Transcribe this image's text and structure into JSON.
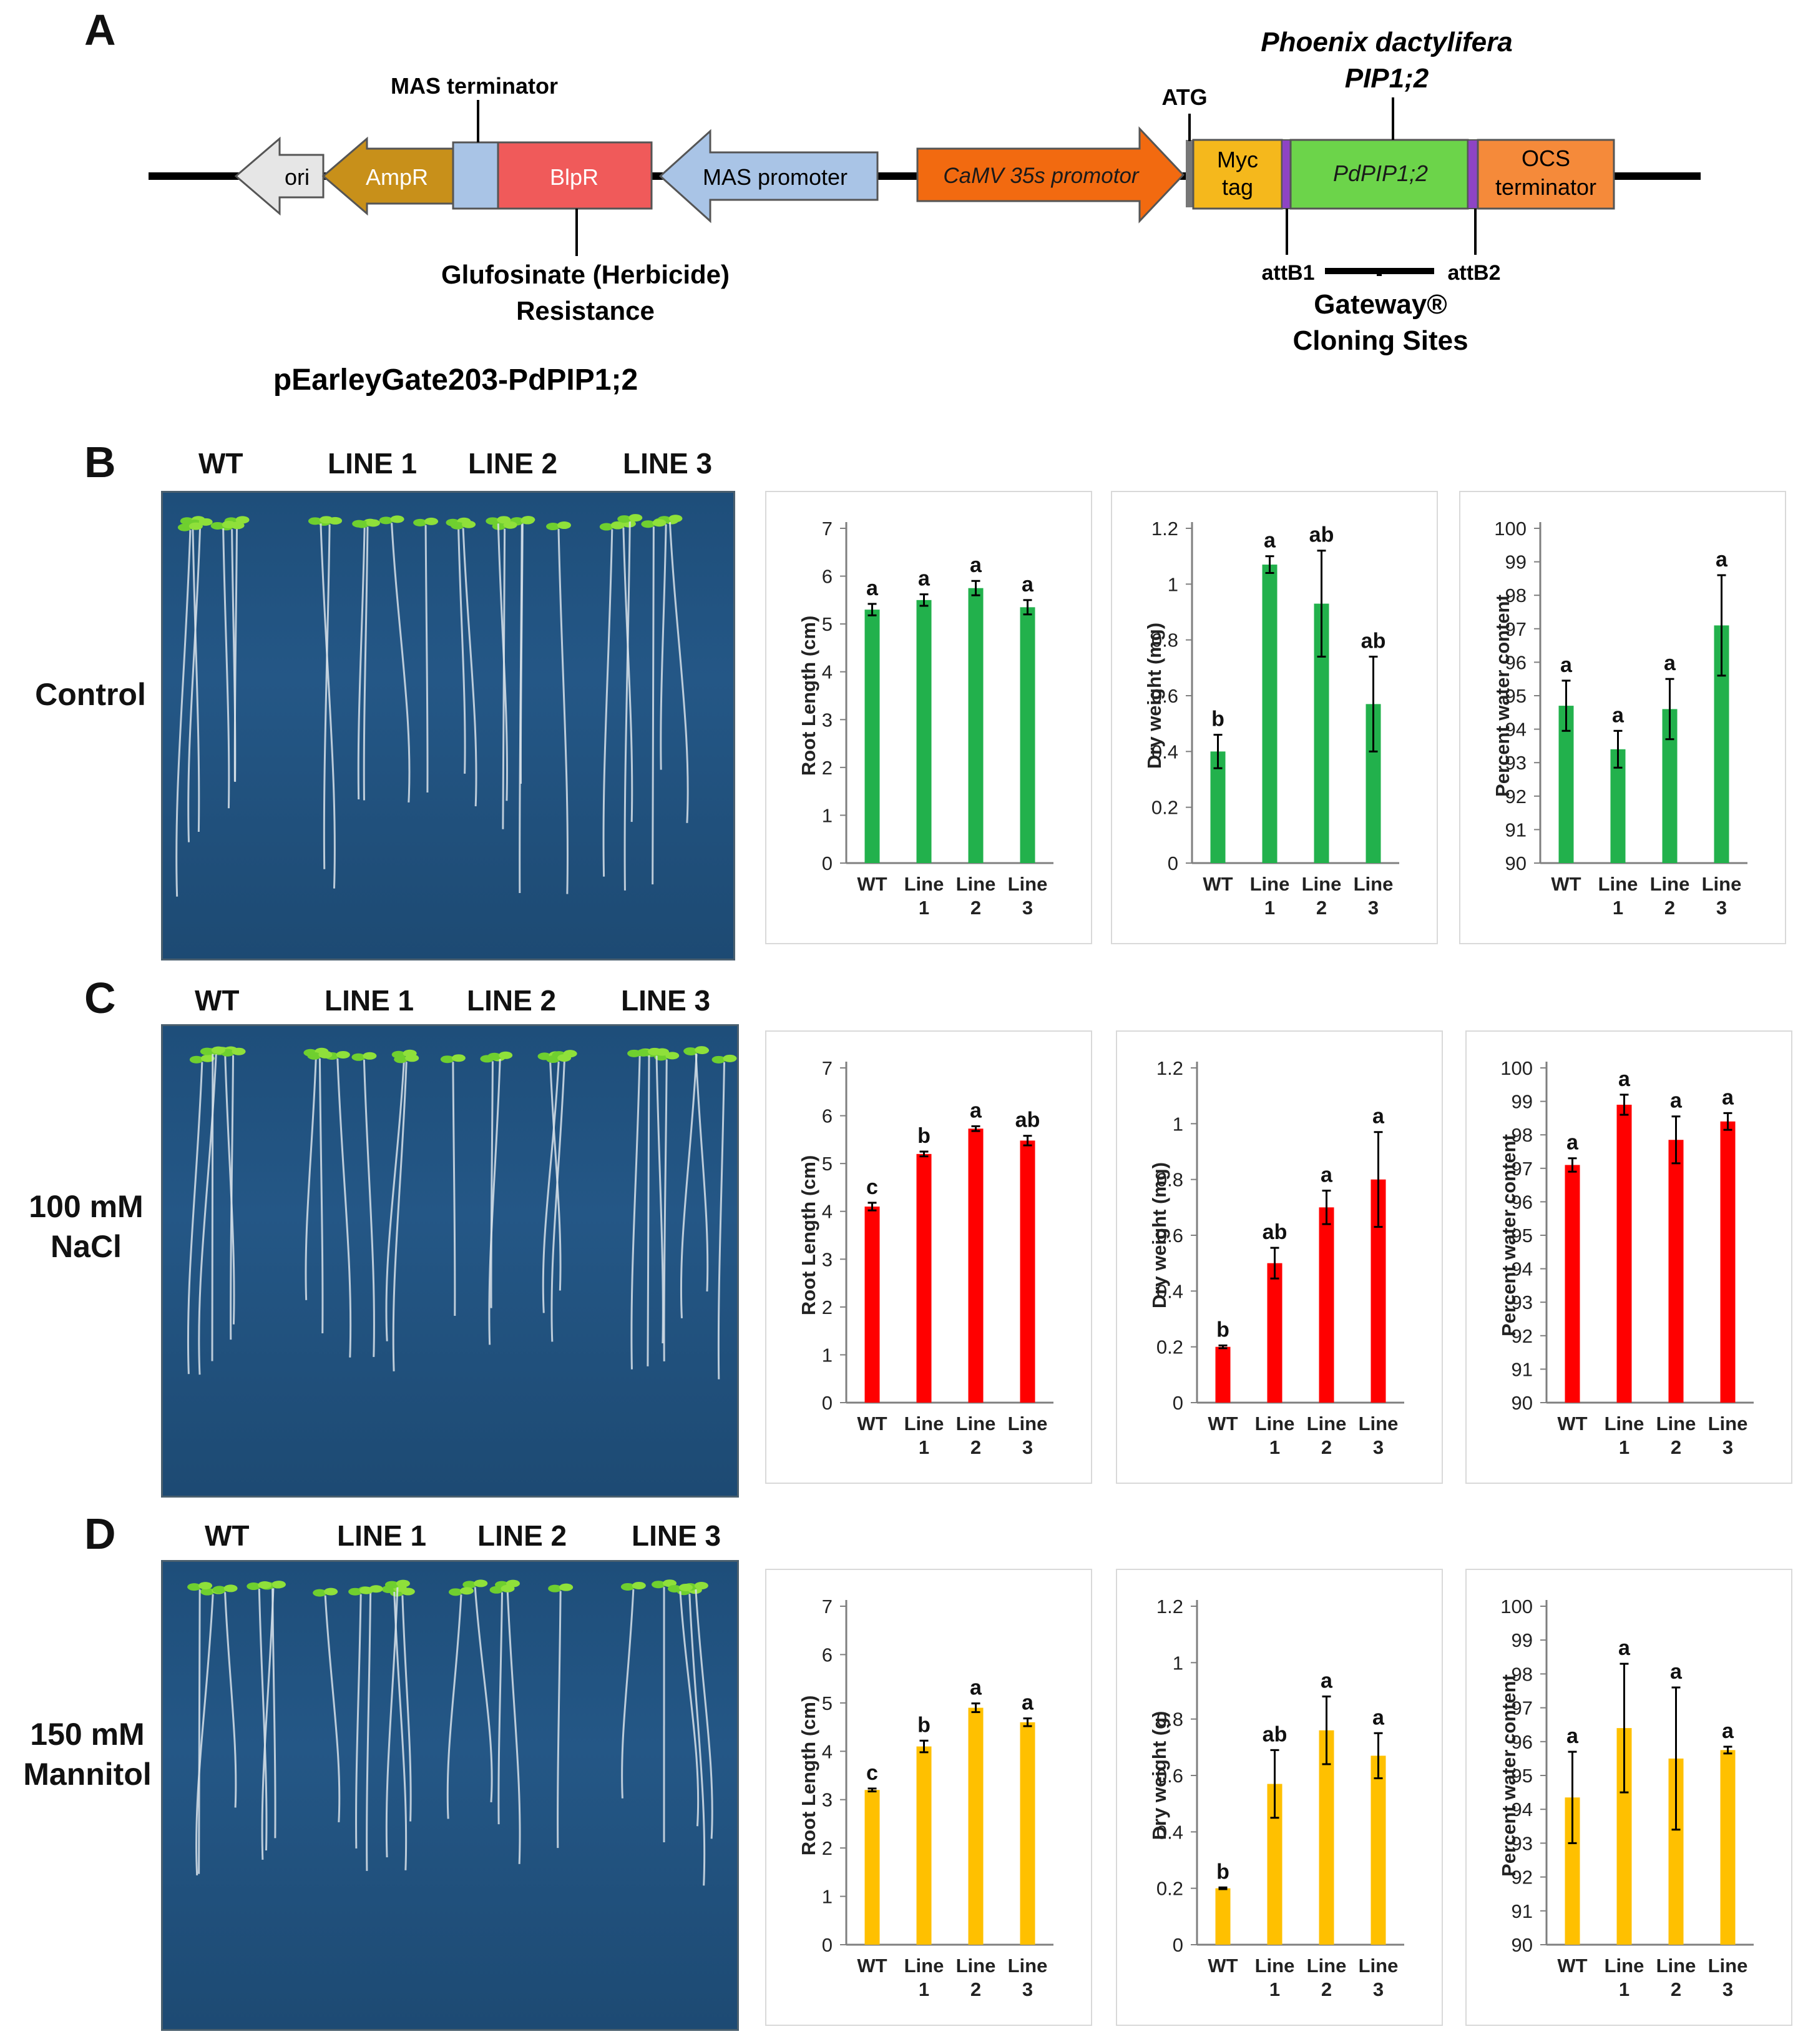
{
  "panel_a": {
    "letter": "A",
    "plasmid_name": "pEarleyGate203-PdPIP1;2",
    "elements": {
      "ori": "ori",
      "ampr": "AmpR",
      "blpr": "BlpR",
      "mas_promoter": "MAS promoter",
      "camv": "CaMV 35s promotor",
      "myc_line1": "Myc",
      "myc_line2": "tag",
      "pdpip": "PdPIP1;2",
      "ocs_line1": "OCS",
      "ocs_line2": "terminator"
    },
    "labels": {
      "mas_terminator": "MAS  terminator",
      "glufosinate_line1": "Glufosinate (Herbicide)",
      "glufosinate_line2": "Resistance",
      "atg": "ATG",
      "species_line1": "Phoenix dactylifera",
      "species_line2": "PIP1;2",
      "attb1": "attB1",
      "attb2": "attB2",
      "gateway_line1": "Gateway®",
      "gateway_line2": "Cloning Sites"
    },
    "colors": {
      "ori": "#e6e6e6",
      "ampr": "#c8901a",
      "mas_term": "#a9c4e6",
      "blpr": "#f05a5a",
      "mas_promoter": "#a9c4e6",
      "camv": "#f26a10",
      "myc": "#f5b81c",
      "att": "#8e44c4",
      "pdpip": "#6cd44a",
      "ocs": "#f58a3a"
    }
  },
  "rows": [
    {
      "letter": "B",
      "condition_line1": "Control",
      "condition_line2": "",
      "plate_labels": [
        "WT",
        "LINE 1",
        "LINE 2",
        "LINE 3"
      ]
    },
    {
      "letter": "C",
      "condition_line1": "100 mM",
      "condition_line2": "NaCl",
      "plate_labels": [
        "WT",
        "LINE 1",
        "LINE 2",
        "LINE 3"
      ]
    },
    {
      "letter": "D",
      "condition_line1": "150 mM",
      "condition_line2": "Mannitol",
      "plate_labels": [
        "WT",
        "LINE 1",
        "LINE 2",
        "LINE 3"
      ]
    }
  ],
  "chart_data": [
    {
      "id": "b_root",
      "type": "bar",
      "color": "#22b14c",
      "ylabel": "Root Length (cm)",
      "ylim": [
        0,
        7
      ],
      "yticks": [
        "0",
        "1",
        "2",
        "3",
        "4",
        "5",
        "6",
        "7"
      ],
      "tick_step": 1,
      "categories": [
        [
          "WT",
          ""
        ],
        [
          "Line",
          "1"
        ],
        [
          "Line",
          "2"
        ],
        [
          "Line",
          "3"
        ]
      ],
      "values": [
        5.3,
        5.5,
        5.75,
        5.35
      ],
      "errors": [
        0.12,
        0.12,
        0.15,
        0.15
      ],
      "letters": [
        "a",
        "a",
        "a",
        "a"
      ]
    },
    {
      "id": "b_dry",
      "type": "bar",
      "color": "#22b14c",
      "ylabel": "Dry weight (mg)",
      "ylim": [
        0,
        1.2
      ],
      "yticks": [
        "0",
        "0.2",
        "0.4",
        "0.6",
        "0.8",
        "1",
        "1.2"
      ],
      "tick_step": 0.2,
      "categories": [
        [
          "WT",
          ""
        ],
        [
          "Line",
          "1"
        ],
        [
          "Line",
          "2"
        ],
        [
          "Line",
          "3"
        ]
      ],
      "values": [
        0.4,
        1.07,
        0.93,
        0.57
      ],
      "errors": [
        0.06,
        0.03,
        0.19,
        0.17
      ],
      "letters": [
        "b",
        "a",
        "ab",
        "ab"
      ]
    },
    {
      "id": "b_water",
      "type": "bar",
      "color": "#22b14c",
      "ylabel": "Percent water content",
      "ylim": [
        90,
        100
      ],
      "yticks": [
        "90",
        "91",
        "92",
        "93",
        "94",
        "95",
        "96",
        "97",
        "98",
        "99",
        "100"
      ],
      "tick_step": 1,
      "categories": [
        [
          "WT",
          ""
        ],
        [
          "Line",
          "1"
        ],
        [
          "Line",
          "2"
        ],
        [
          "Line",
          "3"
        ]
      ],
      "values": [
        94.7,
        93.4,
        94.6,
        97.1
      ],
      "errors": [
        0.75,
        0.55,
        0.9,
        1.5
      ],
      "letters": [
        "a",
        "a",
        "a",
        "a"
      ]
    },
    {
      "id": "c_root",
      "type": "bar",
      "color": "#ff0000",
      "ylabel": "Root Length (cm)",
      "ylim": [
        0,
        7
      ],
      "yticks": [
        "0",
        "1",
        "2",
        "3",
        "4",
        "5",
        "6",
        "7"
      ],
      "tick_step": 1,
      "categories": [
        [
          "WT",
          ""
        ],
        [
          "Line",
          "1"
        ],
        [
          "Line",
          "2"
        ],
        [
          "Line",
          "3"
        ]
      ],
      "values": [
        4.1,
        5.2,
        5.73,
        5.48
      ],
      "errors": [
        0.08,
        0.05,
        0.05,
        0.1
      ],
      "letters": [
        "c",
        "b",
        "a",
        "ab"
      ]
    },
    {
      "id": "c_dry",
      "type": "bar",
      "color": "#ff0000",
      "ylabel": "Dry weight (mg)",
      "ylim": [
        0,
        1.2
      ],
      "yticks": [
        "0",
        "0.2",
        "0.4",
        "0.6",
        "0.8",
        "1",
        "1.2"
      ],
      "tick_step": 0.2,
      "categories": [
        [
          "WT",
          ""
        ],
        [
          "Line",
          "1"
        ],
        [
          "Line",
          "2"
        ],
        [
          "Line",
          "3"
        ]
      ],
      "values": [
        0.2,
        0.5,
        0.7,
        0.8
      ],
      "errors": [
        0.005,
        0.055,
        0.06,
        0.17
      ],
      "letters": [
        "b",
        "ab",
        "a",
        "a"
      ]
    },
    {
      "id": "c_water",
      "type": "bar",
      "color": "#ff0000",
      "ylabel": "Percent water content",
      "ylim": [
        90,
        100
      ],
      "yticks": [
        "90",
        "91",
        "92",
        "93",
        "94",
        "95",
        "96",
        "97",
        "98",
        "99",
        "100"
      ],
      "tick_step": 1,
      "categories": [
        [
          "WT",
          ""
        ],
        [
          "Line",
          "1"
        ],
        [
          "Line",
          "2"
        ],
        [
          "Line",
          "3"
        ]
      ],
      "values": [
        97.1,
        98.9,
        97.85,
        98.4
      ],
      "errors": [
        0.2,
        0.3,
        0.7,
        0.25
      ],
      "letters": [
        "a",
        "a",
        "a",
        "a"
      ]
    },
    {
      "id": "d_root",
      "type": "bar",
      "color": "#ffc000",
      "ylabel": "Root Length (cm)",
      "ylim": [
        0,
        7
      ],
      "yticks": [
        "0",
        "1",
        "2",
        "3",
        "4",
        "5",
        "6",
        "7"
      ],
      "tick_step": 1,
      "categories": [
        [
          "WT",
          ""
        ],
        [
          "Line",
          "1"
        ],
        [
          "Line",
          "2"
        ],
        [
          "Line",
          "3"
        ]
      ],
      "values": [
        3.2,
        4.1,
        4.9,
        4.6
      ],
      "errors": [
        0.03,
        0.12,
        0.09,
        0.08
      ],
      "letters": [
        "c",
        "b",
        "a",
        "a"
      ]
    },
    {
      "id": "d_dry",
      "type": "bar",
      "color": "#ffc000",
      "ylabel": "Dry weight (g)",
      "ylim": [
        0,
        1.2
      ],
      "yticks": [
        "0",
        "0.2",
        "0.4",
        "0.6",
        "0.8",
        "1",
        "1.2"
      ],
      "tick_step": 0.2,
      "categories": [
        [
          "WT",
          ""
        ],
        [
          "Line",
          "1"
        ],
        [
          "Line",
          "2"
        ],
        [
          "Line",
          "3"
        ]
      ],
      "values": [
        0.2,
        0.57,
        0.76,
        0.67
      ],
      "errors": [
        0.003,
        0.12,
        0.12,
        0.08
      ],
      "letters": [
        "b",
        "ab",
        "a",
        "a"
      ]
    },
    {
      "id": "d_water",
      "type": "bar",
      "color": "#ffc000",
      "ylabel": "Percent water content",
      "ylim": [
        90,
        100
      ],
      "yticks": [
        "90",
        "91",
        "92",
        "93",
        "94",
        "95",
        "96",
        "97",
        "98",
        "99",
        "100"
      ],
      "tick_step": 1,
      "categories": [
        [
          "WT",
          ""
        ],
        [
          "Line",
          "1"
        ],
        [
          "Line",
          "2"
        ],
        [
          "Line",
          "3"
        ]
      ],
      "values": [
        94.35,
        96.4,
        95.5,
        95.75
      ],
      "errors": [
        1.35,
        1.9,
        2.1,
        0.1
      ],
      "letters": [
        "a",
        "a",
        "a",
        "a"
      ]
    }
  ]
}
